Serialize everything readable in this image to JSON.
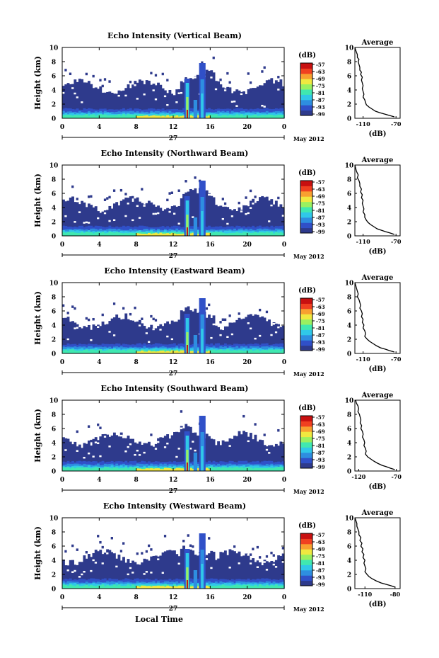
{
  "panels": [
    {
      "title": "Echo Intensity (Vertical Beam)",
      "profile_title": "Average",
      "profile_xlabel": "(dB)",
      "profile_xticks": [
        "-110",
        "-70"
      ],
      "profile_xlim": [
        -120,
        -65
      ],
      "profile": [
        [
          -120,
          10
        ],
        [
          -119,
          9.6
        ],
        [
          -118,
          9.3
        ],
        [
          -117,
          9.0
        ],
        [
          -117,
          8.6
        ],
        [
          -115,
          8.3
        ],
        [
          -116,
          8.0
        ],
        [
          -115,
          7.6
        ],
        [
          -114,
          7.2
        ],
        [
          -114,
          6.8
        ],
        [
          -112,
          6.5
        ],
        [
          -113,
          6.2
        ],
        [
          -111,
          5.8
        ],
        [
          -112,
          5.4
        ],
        [
          -111,
          5.0
        ],
        [
          -110,
          4.6
        ],
        [
          -111,
          4.2
        ],
        [
          -110,
          3.8
        ],
        [
          -109,
          3.4
        ],
        [
          -110,
          3.0
        ],
        [
          -108,
          2.6
        ],
        [
          -107,
          2.2
        ],
        [
          -106,
          1.9
        ],
        [
          -103,
          1.6
        ],
        [
          -99,
          1.3
        ],
        [
          -95,
          1.0
        ],
        [
          -90,
          0.8
        ],
        [
          -84,
          0.6
        ],
        [
          -78,
          0.4
        ],
        [
          -72,
          0.2
        ]
      ],
      "fig": {
        "top": 42
      }
    },
    {
      "title": "Echo Intensity (Northward Beam)",
      "profile_title": "Average",
      "profile_xlabel": "(dB)",
      "profile_xticks": [
        "-110",
        "-70"
      ],
      "profile_xlim": [
        -120,
        -65
      ],
      "profile": [
        [
          -120,
          10
        ],
        [
          -119,
          9.5
        ],
        [
          -118,
          9.1
        ],
        [
          -116,
          8.6
        ],
        [
          -117,
          8.2
        ],
        [
          -115,
          7.8
        ],
        [
          -114,
          7.4
        ],
        [
          -114,
          7.0
        ],
        [
          -112,
          6.6
        ],
        [
          -113,
          6.2
        ],
        [
          -111,
          5.8
        ],
        [
          -112,
          5.4
        ],
        [
          -110,
          5.0
        ],
        [
          -111,
          4.6
        ],
        [
          -110,
          4.2
        ],
        [
          -109,
          3.8
        ],
        [
          -110,
          3.4
        ],
        [
          -108,
          3.0
        ],
        [
          -108,
          2.6
        ],
        [
          -106,
          2.2
        ],
        [
          -104,
          1.9
        ],
        [
          -101,
          1.6
        ],
        [
          -97,
          1.3
        ],
        [
          -93,
          1.0
        ],
        [
          -88,
          0.8
        ],
        [
          -83,
          0.6
        ],
        [
          -77,
          0.4
        ],
        [
          -72,
          0.2
        ]
      ],
      "fig": {
        "top": 208
      }
    },
    {
      "title": "Echo Intensity (Eastward Beam)",
      "profile_title": "Average",
      "profile_xlabel": "(dB)",
      "profile_xticks": [
        "-110",
        "-70"
      ],
      "profile_xlim": [
        -120,
        -65
      ],
      "profile": [
        [
          -120,
          10
        ],
        [
          -119,
          9.6
        ],
        [
          -118,
          9.2
        ],
        [
          -117,
          8.8
        ],
        [
          -116,
          8.4
        ],
        [
          -117,
          8.0
        ],
        [
          -115,
          7.6
        ],
        [
          -114,
          7.2
        ],
        [
          -113,
          6.8
        ],
        [
          -114,
          6.4
        ],
        [
          -112,
          6.0
        ],
        [
          -111,
          5.6
        ],
        [
          -112,
          5.2
        ],
        [
          -110,
          4.8
        ],
        [
          -111,
          4.4
        ],
        [
          -109,
          4.0
        ],
        [
          -110,
          3.6
        ],
        [
          -108,
          3.2
        ],
        [
          -107,
          2.8
        ],
        [
          -108,
          2.4
        ],
        [
          -105,
          2.0
        ],
        [
          -102,
          1.7
        ],
        [
          -98,
          1.4
        ],
        [
          -94,
          1.1
        ],
        [
          -89,
          0.8
        ],
        [
          -83,
          0.6
        ],
        [
          -78,
          0.4
        ],
        [
          -72,
          0.2
        ]
      ],
      "fig": {
        "top": 374
      }
    },
    {
      "title": "Echo Intensity (Southward Beam)",
      "profile_title": "Average",
      "profile_xlabel": "(dB)",
      "profile_xticks": [
        "-120",
        "-70"
      ],
      "profile_xlim": [
        -125,
        -65
      ],
      "profile": [
        [
          -124,
          10
        ],
        [
          -123,
          9.6
        ],
        [
          -121,
          9.2
        ],
        [
          -120,
          8.8
        ],
        [
          -121,
          8.4
        ],
        [
          -119,
          8.0
        ],
        [
          -118,
          7.6
        ],
        [
          -117,
          7.2
        ],
        [
          -118,
          6.8
        ],
        [
          -116,
          6.4
        ],
        [
          -117,
          6.0
        ],
        [
          -115,
          5.6
        ],
        [
          -114,
          5.2
        ],
        [
          -115,
          4.8
        ],
        [
          -113,
          4.4
        ],
        [
          -112,
          4.0
        ],
        [
          -113,
          3.6
        ],
        [
          -111,
          3.2
        ],
        [
          -110,
          2.8
        ],
        [
          -111,
          2.4
        ],
        [
          -108,
          2.0
        ],
        [
          -104,
          1.7
        ],
        [
          -100,
          1.4
        ],
        [
          -95,
          1.1
        ],
        [
          -89,
          0.8
        ],
        [
          -83,
          0.6
        ],
        [
          -78,
          0.4
        ],
        [
          -72,
          0.2
        ]
      ],
      "fig": {
        "top": 540
      }
    },
    {
      "title": "Echo Intensity (Westward Beam)",
      "profile_title": "Average",
      "profile_xlabel": "(dB)",
      "profile_xticks": [
        "-110",
        "-80"
      ],
      "profile_xlim": [
        -120,
        -75
      ],
      "profile": [
        [
          -120,
          10
        ],
        [
          -119,
          9.6
        ],
        [
          -118,
          9.2
        ],
        [
          -118,
          8.8
        ],
        [
          -117,
          8.4
        ],
        [
          -116,
          8.0
        ],
        [
          -116,
          7.6
        ],
        [
          -114,
          7.2
        ],
        [
          -115,
          6.8
        ],
        [
          -113,
          6.4
        ],
        [
          -114,
          6.0
        ],
        [
          -112,
          5.6
        ],
        [
          -113,
          5.2
        ],
        [
          -111,
          4.8
        ],
        [
          -112,
          4.4
        ],
        [
          -110,
          4.0
        ],
        [
          -111,
          3.6
        ],
        [
          -110,
          3.2
        ],
        [
          -109,
          2.8
        ],
        [
          -110,
          2.4
        ],
        [
          -108,
          2.0
        ],
        [
          -106,
          1.7
        ],
        [
          -103,
          1.4
        ],
        [
          -99,
          1.1
        ],
        [
          -94,
          0.8
        ],
        [
          -89,
          0.6
        ],
        [
          -84,
          0.4
        ],
        [
          -80,
          0.2
        ]
      ],
      "fig": {
        "top": 706
      }
    }
  ],
  "common": {
    "ylabel": "Height (km)",
    "yticks": [
      "0",
      "2",
      "4",
      "6",
      "8",
      "10"
    ],
    "xticks": [
      "0",
      "4",
      "8",
      "12",
      "16",
      "20",
      "0"
    ],
    "date_day": "27",
    "date_month": "May 2012",
    "colorbar_title": "(dB)",
    "colorbar_ticks": [
      "-57",
      "-63",
      "-69",
      "-75",
      "-81",
      "-87",
      "-93",
      "-99"
    ],
    "xlabel": "Local Time"
  },
  "colors": {
    "background": "#ffffff",
    "low_echo": "#2e3a8c",
    "colormap": [
      "#2e3a8c",
      "#3050c8",
      "#2e8ee0",
      "#30c8e8",
      "#40e8b0",
      "#9af060",
      "#f0e840",
      "#f8a030",
      "#f04020",
      "#c81010"
    ]
  },
  "chart_data": {
    "type": "heatmap",
    "title": "Echo Intensity",
    "xlabel": "Local Time",
    "ylabel": "Height (km)",
    "xlim": [
      0,
      24
    ],
    "ylim": [
      0,
      10
    ],
    "colorbar": {
      "label": "(dB)",
      "range": [
        -99,
        -57
      ]
    },
    "date": "27 May 2012",
    "series": [
      {
        "name": "Vertical Beam"
      },
      {
        "name": "Northward Beam"
      },
      {
        "name": "Eastward Beam"
      },
      {
        "name": "Southward Beam"
      },
      {
        "name": "Westward Beam"
      }
    ]
  }
}
